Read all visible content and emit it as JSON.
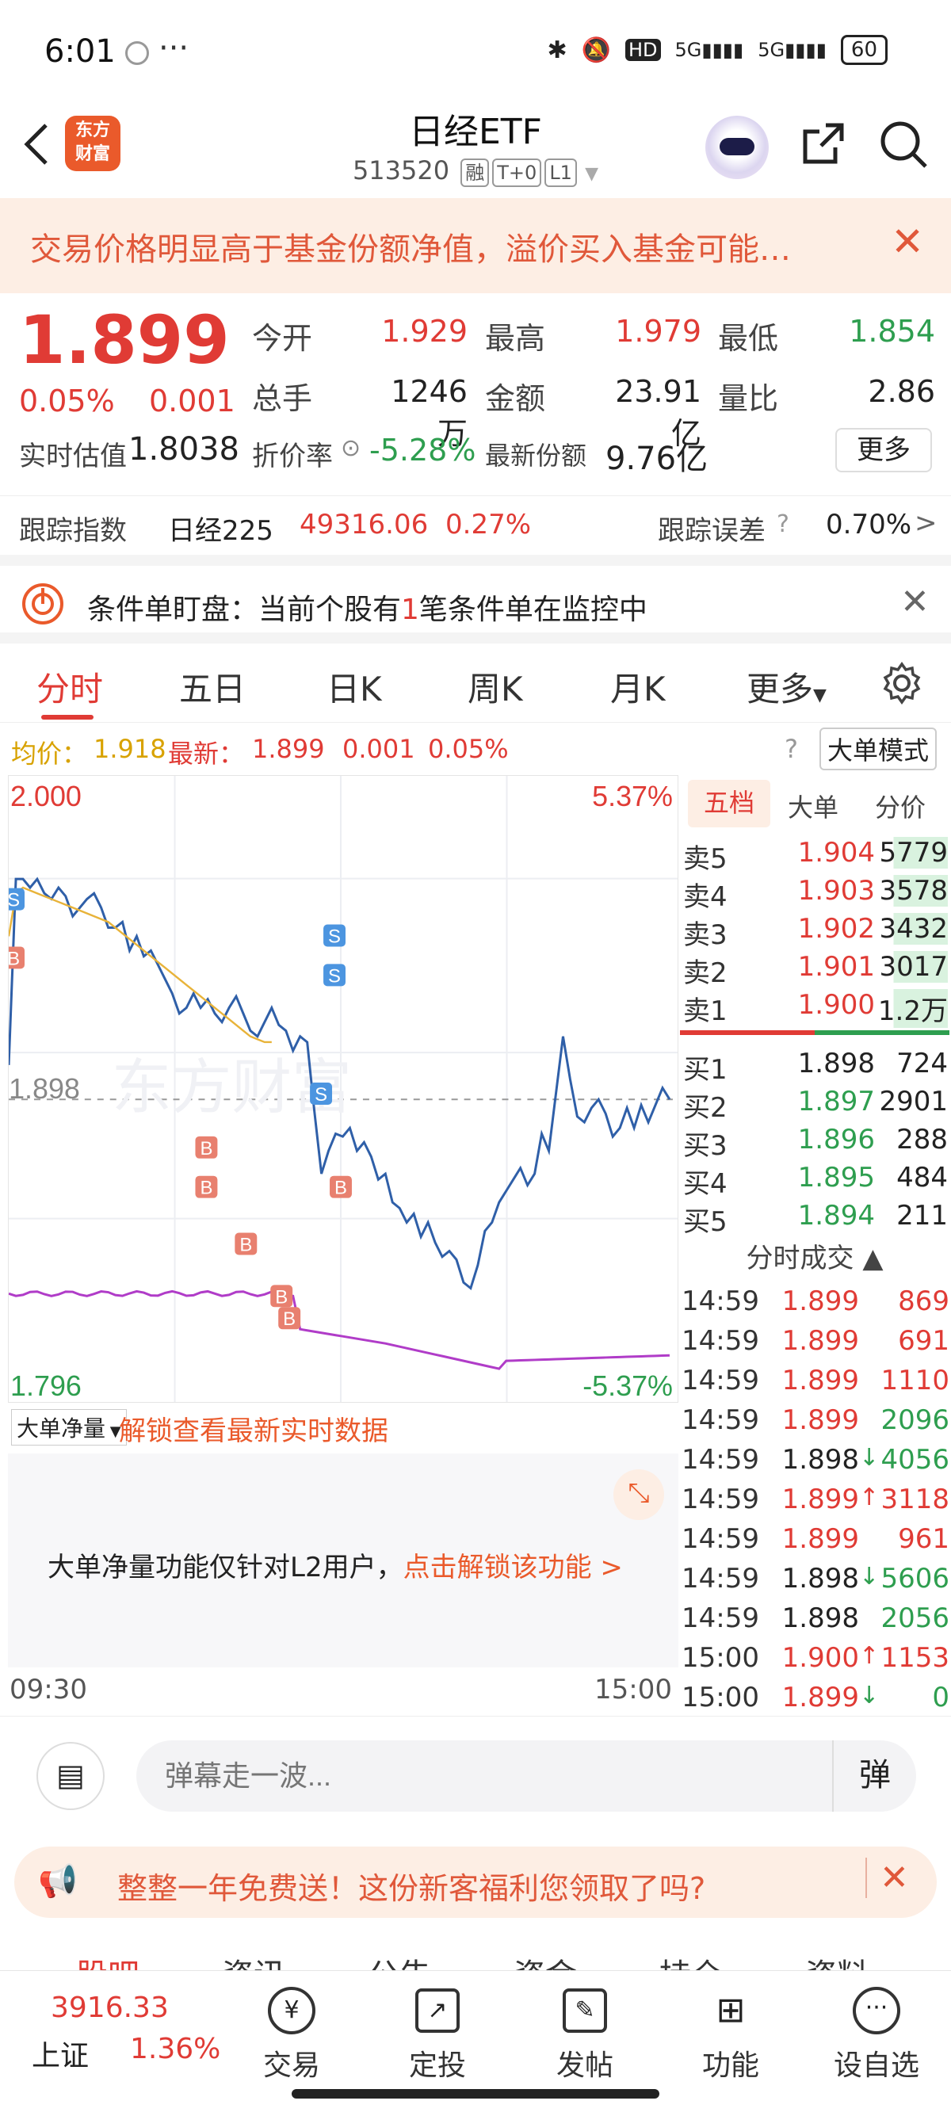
{
  "status_bar": {
    "time": "6:01",
    "dots": "···",
    "battery": "60",
    "icons": [
      "bluetooth-icon",
      "mute-icon",
      "hd-icon",
      "signal-5g-icon",
      "signal-5g-icon"
    ]
  },
  "header": {
    "title": "日经ETF",
    "code": "513520",
    "tags": [
      "融",
      "T+0",
      "L1"
    ]
  },
  "banner": {
    "text": "交易价格明显高于基金份额净值，溢价买入基金可能…"
  },
  "quote": {
    "price": "1.899",
    "change_pct": "0.05%",
    "change": "0.001",
    "grid": [
      {
        "label": "今开",
        "value": "1.929",
        "color": "#e03b35"
      },
      {
        "label": "最高",
        "value": "1.979",
        "color": "#e03b35"
      },
      {
        "label": "最低",
        "value": "1.854",
        "color": "#2e9e4f"
      },
      {
        "label": "总手",
        "value": "1246万",
        "color": "#222"
      },
      {
        "label": "金额",
        "value": "23.91亿",
        "color": "#222"
      },
      {
        "label": "量比",
        "value": "2.86",
        "color": "#222"
      }
    ],
    "est_label": "实时估值",
    "est_value": "1.8038",
    "discount_label": "折价率",
    "discount_value": "-5.28%",
    "share_label": "最新份额",
    "share_value": "9.76亿",
    "more": "更多"
  },
  "tracking": {
    "label": "跟踪指数",
    "index": "日经225",
    "index_value": "49316.06",
    "index_pct": "0.27%",
    "err_label": "跟踪误差",
    "err_value": "0.70%",
    "arrow": ">"
  },
  "condition": {
    "prefix": "条件单盯盘：当前个股有",
    "count": "1",
    "suffix": "笔条件单在监控中"
  },
  "tabs": [
    "分时",
    "五日",
    "日K",
    "周K",
    "月K",
    "更多"
  ],
  "info": {
    "avg_label": "均价：",
    "avg": "1.918",
    "last_label": "最新：",
    "last": "1.899",
    "chg": "0.001",
    "pct": "0.05%",
    "mode": "大单模式"
  },
  "chart_data": {
    "type": "line",
    "ylim": [
      1.796,
      2.0
    ],
    "y_top": "2.000",
    "y_bottom": "1.796",
    "pct_top": "5.37%",
    "pct_bottom": "-5.37%",
    "ref_label": "1.898",
    "watermark": "东方财富",
    "x_start": "09:30",
    "x_end": "15:00",
    "series": [
      {
        "values": [
          1.91,
          1.975,
          1.975,
          1.972,
          1.975,
          1.97,
          1.968,
          1.972,
          1.969,
          1.962,
          1.965,
          1.968,
          1.97,
          1.965,
          1.958,
          1.958,
          1.96,
          1.95,
          1.955,
          1.948,
          1.95,
          1.945,
          1.94,
          1.935,
          1.928,
          1.93,
          1.935,
          1.93,
          1.933,
          1.928,
          1.925,
          1.93,
          1.934,
          1.928,
          1.922,
          1.92,
          1.925,
          1.93,
          1.924,
          1.922,
          1.915,
          1.92,
          1.918,
          1.894,
          1.872,
          1.88,
          1.886,
          1.885,
          1.888,
          1.88,
          1.883,
          1.878,
          1.87,
          1.872,
          1.862,
          1.86,
          1.855,
          1.858,
          1.85,
          1.855,
          1.848,
          1.843,
          1.845,
          1.842,
          1.834,
          1.832,
          1.84,
          1.852,
          1.855,
          1.862,
          1.866,
          1.87,
          1.874,
          1.868,
          1.872,
          1.886,
          1.88,
          1.9,
          1.92,
          1.905,
          1.892,
          1.89,
          1.895,
          1.898,
          1.893,
          1.885,
          1.888,
          1.895,
          1.888,
          1.896,
          1.89,
          1.896,
          1.902,
          1.898
        ]
      },
      {
        "values": [
          1.955,
          1.97,
          1.972,
          1.971,
          1.97,
          1.969,
          1.968,
          1.967,
          1.966,
          1.965,
          1.964,
          1.963,
          1.962,
          1.961,
          1.96,
          1.958,
          1.956,
          1.954,
          1.952,
          1.95,
          1.948,
          1.946,
          1.944,
          1.942,
          1.94,
          1.938,
          1.936,
          1.934,
          1.932,
          1.93,
          1.928,
          1.926,
          1.924,
          1.922,
          1.92,
          1.919,
          1.918,
          1.918
        ]
      }
    ]
  },
  "orderbook": {
    "tabs": [
      "五档",
      "大单",
      "分价"
    ],
    "asks": [
      {
        "label": "卖5",
        "price": "1.904",
        "vol": "5779"
      },
      {
        "label": "卖4",
        "price": "1.903",
        "vol": "3578"
      },
      {
        "label": "卖3",
        "price": "1.902",
        "vol": "3432"
      },
      {
        "label": "卖2",
        "price": "1.901",
        "vol": "3017"
      },
      {
        "label": "卖1",
        "price": "1.900",
        "vol": "1.2万"
      }
    ],
    "bids": [
      {
        "label": "买1",
        "price": "1.898",
        "vol": "724"
      },
      {
        "label": "买2",
        "price": "1.897",
        "vol": "2901"
      },
      {
        "label": "买3",
        "price": "1.896",
        "vol": "288"
      },
      {
        "label": "买4",
        "price": "1.895",
        "vol": "484"
      },
      {
        "label": "买5",
        "price": "1.894",
        "vol": "211"
      }
    ]
  },
  "trades_title": "分时成交",
  "trades": [
    {
      "time": "14:59",
      "price": "1.899",
      "vol": "869",
      "pc": "#e03b35",
      "vc": "#e03b35",
      "arrow": ""
    },
    {
      "time": "14:59",
      "price": "1.899",
      "vol": "691",
      "pc": "#e03b35",
      "vc": "#e03b35",
      "arrow": ""
    },
    {
      "time": "14:59",
      "price": "1.899",
      "vol": "1110",
      "pc": "#e03b35",
      "vc": "#e03b35",
      "arrow": ""
    },
    {
      "time": "14:59",
      "price": "1.899",
      "vol": "2096",
      "pc": "#e03b35",
      "vc": "#2e9e4f",
      "arrow": ""
    },
    {
      "time": "14:59",
      "price": "1.898",
      "vol": "4056",
      "pc": "#222",
      "vc": "#2e9e4f",
      "arrow": "↓"
    },
    {
      "time": "14:59",
      "price": "1.899",
      "vol": "3118",
      "pc": "#e03b35",
      "vc": "#e03b35",
      "arrow": "↑"
    },
    {
      "time": "14:59",
      "price": "1.899",
      "vol": "961",
      "pc": "#e03b35",
      "vc": "#e03b35",
      "arrow": ""
    },
    {
      "time": "14:59",
      "price": "1.898",
      "vol": "5606",
      "pc": "#222",
      "vc": "#2e9e4f",
      "arrow": "↓"
    },
    {
      "time": "14:59",
      "price": "1.898",
      "vol": "2056",
      "pc": "#222",
      "vc": "#2e9e4f",
      "arrow": ""
    },
    {
      "time": "15:00",
      "price": "1.900",
      "vol": "1153",
      "pc": "#e03b35",
      "vc": "#e03b35",
      "arrow": "↑"
    },
    {
      "time": "15:00",
      "price": "1.899",
      "vol": "0",
      "pc": "#e03b35",
      "vc": "#2e9e4f",
      "arrow": "↓"
    }
  ],
  "bignet": {
    "select": "大单净量",
    "unlock": "解锁查看最新实时数据",
    "l2_text": "大单净量功能仅针对L2用户，",
    "l2_link": "点击解锁该功能 >"
  },
  "comment": {
    "placeholder": "弹幕走一波...",
    "danmu": "弹"
  },
  "promo": {
    "text": "整整一年免费送！这份新客福利您领取了吗?"
  },
  "bottom_tabs_partial": [
    "股吧",
    "资讯",
    "公告",
    "资金",
    "持仓",
    "资料"
  ],
  "bottom_nav": {
    "index_value": "3916.33",
    "index_name": "上证",
    "index_pct": "1.36%",
    "items": [
      "交易",
      "定投",
      "发帖",
      "功能",
      "设自选"
    ]
  }
}
